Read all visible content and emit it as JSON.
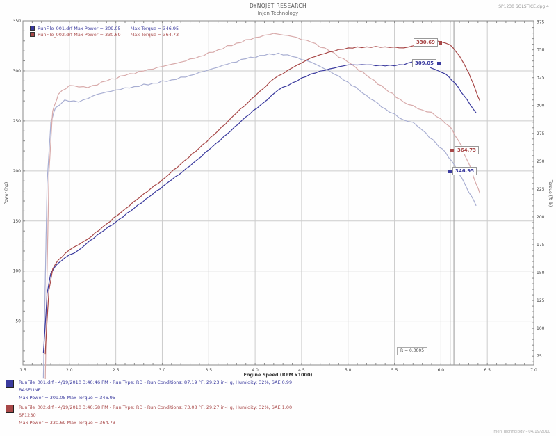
{
  "header": {
    "title_line1": "DYNOJET RESEARCH",
    "title_line2": "Injen Technology",
    "top_right": "SP1230 SOLSTICE.dpg 4"
  },
  "colors": {
    "run1": "#3a3a9e",
    "run1_light": "#a8aed2",
    "run2": "#a84848",
    "run2_light": "#d8aaaa",
    "grid": "#cccccc",
    "axis": "#8a8a8a",
    "cursor": "#9a9a9a"
  },
  "legend": {
    "rows": [
      {
        "file_power": "RunFile_001.drf Max Power = 309.05",
        "torque": "Max Torque = 346.95"
      },
      {
        "file_power": "RunFile_002.drf Max Power = 330.69",
        "torque": "Max Torque = 364.73"
      }
    ]
  },
  "callouts": [
    {
      "text": "330.69",
      "meaning": "run2-max-power"
    },
    {
      "text": "309.05",
      "meaning": "run1-max-power"
    },
    {
      "text": "364.73",
      "meaning": "run2-max-torque"
    },
    {
      "text": "346.95",
      "meaning": "run1-max-torque"
    }
  ],
  "rbox_text": "R = 0.0005",
  "axes": {
    "x_label": "Engine Speed (RPM x1000)",
    "y_left_label": "Power (hp)",
    "y_right_label": "Torque (ft-lb)"
  },
  "footer": {
    "runs": [
      {
        "line1": "RunFile_001.drf - 4/19/2010 3:40:46 PM - Run Type: RD - Run Conditions: 87.19 °F, 29.23 in-Hg, Humidity: 32%, SAE 0.99",
        "line2": "BASELINE",
        "line3": "Max Power = 309.05  Max Torque = 346.95"
      },
      {
        "line1": "RunFile_002.drf - 4/19/2010 3:40:58 PM - Run Type: RD - Run Conditions: 73.08 °F, 29.27 in-Hg, Humidity: 32%, SAE 1.00",
        "line2": "SP1230",
        "line3": "Max Power = 330.69  Max Torque = 364.73"
      }
    ],
    "bottom_right": "Injen Technology - 04/19/2010"
  },
  "chart_data": {
    "type": "line",
    "title": "Injen Technology dyno comparison - baseline vs SP1230 intake",
    "xlabel": "Engine Speed (RPM x1000)",
    "ylabel_left": "Power (hp)",
    "ylabel_right": "Torque (ft-lb)",
    "x_range": [
      1.5,
      7.0
    ],
    "x_ticks": [
      1.5,
      2.0,
      2.5,
      3.0,
      3.5,
      4.0,
      4.5,
      5.0,
      5.5,
      6.0,
      6.5,
      7.0
    ],
    "x_minor_step": 0.1,
    "power_range": [
      6,
      350
    ],
    "y_left_ticks": [
      350,
      300,
      250,
      200,
      150,
      100,
      50
    ],
    "y_left_minor_step": 10,
    "torque_range": [
      67,
      376
    ],
    "y_right_ticks": [
      375,
      350,
      325,
      300,
      275,
      250,
      225,
      200,
      175,
      150,
      125,
      100,
      75
    ],
    "y_right_minor_step": 5,
    "grid": true,
    "legend_position": "top-left",
    "cursor_rpm": [
      6.1,
      6.14
    ],
    "series": [
      {
        "name": "RunFile_001 Torque",
        "axis": "torque",
        "color": "#a8aed2",
        "max": 346.95,
        "points": [
          [
            1.72,
            55
          ],
          [
            1.74,
            140
          ],
          [
            1.76,
            230
          ],
          [
            1.8,
            285
          ],
          [
            1.85,
            298
          ],
          [
            1.95,
            305
          ],
          [
            2.1,
            303
          ],
          [
            2.3,
            310
          ],
          [
            2.5,
            314
          ],
          [
            2.7,
            317
          ],
          [
            2.9,
            320
          ],
          [
            3.1,
            323
          ],
          [
            3.3,
            327
          ],
          [
            3.5,
            332
          ],
          [
            3.7,
            337
          ],
          [
            3.9,
            342
          ],
          [
            4.1,
            345
          ],
          [
            4.25,
            346.95
          ],
          [
            4.4,
            344
          ],
          [
            4.6,
            339
          ],
          [
            4.8,
            331
          ],
          [
            5.0,
            321
          ],
          [
            5.2,
            309
          ],
          [
            5.4,
            297
          ],
          [
            5.6,
            287
          ],
          [
            5.7,
            285
          ],
          [
            5.8,
            278
          ],
          [
            5.95,
            266
          ],
          [
            6.05,
            258
          ],
          [
            6.15,
            246
          ],
          [
            6.25,
            231
          ],
          [
            6.38,
            210
          ]
        ]
      },
      {
        "name": "RunFile_002 Torque",
        "axis": "torque",
        "color": "#d8aaaa",
        "max": 364.73,
        "points": [
          [
            1.74,
            50
          ],
          [
            1.76,
            150
          ],
          [
            1.78,
            240
          ],
          [
            1.82,
            295
          ],
          [
            1.88,
            310
          ],
          [
            2.0,
            318
          ],
          [
            2.2,
            316
          ],
          [
            2.4,
            322
          ],
          [
            2.6,
            327
          ],
          [
            2.8,
            331
          ],
          [
            3.0,
            335
          ],
          [
            3.2,
            339
          ],
          [
            3.4,
            344
          ],
          [
            3.6,
            350
          ],
          [
            3.8,
            356
          ],
          [
            4.0,
            361
          ],
          [
            4.2,
            364.73
          ],
          [
            4.4,
            362
          ],
          [
            4.6,
            357
          ],
          [
            4.8,
            349
          ],
          [
            5.0,
            339
          ],
          [
            5.2,
            327
          ],
          [
            5.4,
            315
          ],
          [
            5.6,
            303
          ],
          [
            5.8,
            296
          ],
          [
            5.9,
            294
          ],
          [
            6.0,
            288
          ],
          [
            6.1,
            281
          ],
          [
            6.2,
            267
          ],
          [
            6.3,
            248
          ],
          [
            6.42,
            221
          ]
        ]
      },
      {
        "name": "RunFile_001 Power",
        "axis": "power",
        "color": "#3a3a9e",
        "max": 309.05,
        "points": [
          [
            1.72,
            18
          ],
          [
            1.74,
            46
          ],
          [
            1.76,
            77
          ],
          [
            1.8,
            98
          ],
          [
            1.85,
            105
          ],
          [
            1.95,
            113
          ],
          [
            2.1,
            121
          ],
          [
            2.3,
            136
          ],
          [
            2.5,
            149
          ],
          [
            2.7,
            163
          ],
          [
            2.9,
            177
          ],
          [
            3.1,
            191
          ],
          [
            3.3,
            205
          ],
          [
            3.5,
            221
          ],
          [
            3.7,
            237
          ],
          [
            3.9,
            254
          ],
          [
            4.1,
            269
          ],
          [
            4.25,
            281
          ],
          [
            4.4,
            288
          ],
          [
            4.6,
            297
          ],
          [
            4.8,
            302
          ],
          [
            5.0,
            306
          ],
          [
            5.2,
            306
          ],
          [
            5.4,
            305
          ],
          [
            5.6,
            306
          ],
          [
            5.7,
            309.05
          ],
          [
            5.8,
            307
          ],
          [
            5.95,
            301
          ],
          [
            6.05,
            297
          ],
          [
            6.15,
            288
          ],
          [
            6.25,
            275
          ],
          [
            6.38,
            258
          ]
        ]
      },
      {
        "name": "RunFile_002 Power",
        "axis": "power",
        "color": "#a84848",
        "max": 330.69,
        "points": [
          [
            1.74,
            17
          ],
          [
            1.76,
            50
          ],
          [
            1.78,
            81
          ],
          [
            1.82,
            102
          ],
          [
            1.88,
            111
          ],
          [
            2.0,
            121
          ],
          [
            2.2,
            132
          ],
          [
            2.4,
            147
          ],
          [
            2.6,
            162
          ],
          [
            2.8,
            177
          ],
          [
            3.0,
            191
          ],
          [
            3.2,
            207
          ],
          [
            3.4,
            223
          ],
          [
            3.6,
            240
          ],
          [
            3.8,
            258
          ],
          [
            4.0,
            275
          ],
          [
            4.2,
            292
          ],
          [
            4.4,
            303
          ],
          [
            4.6,
            313
          ],
          [
            4.8,
            319
          ],
          [
            5.0,
            323
          ],
          [
            5.2,
            324
          ],
          [
            5.4,
            324
          ],
          [
            5.6,
            323
          ],
          [
            5.8,
            327
          ],
          [
            5.9,
            330.69
          ],
          [
            6.0,
            329
          ],
          [
            6.1,
            326
          ],
          [
            6.2,
            315
          ],
          [
            6.3,
            298
          ],
          [
            6.42,
            270
          ]
        ]
      }
    ]
  }
}
